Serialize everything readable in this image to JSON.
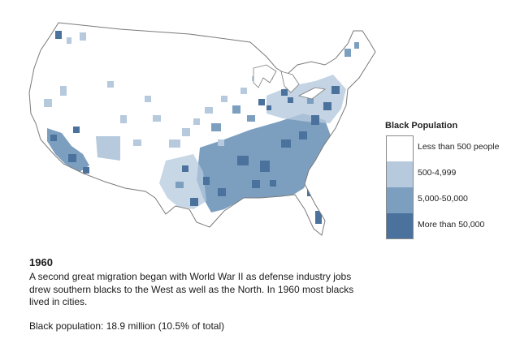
{
  "legend": {
    "title": "Black Population",
    "items": [
      {
        "label": "Less than 500 people",
        "color": "#ffffff"
      },
      {
        "label": "500-4,999",
        "color": "#b6c9dd"
      },
      {
        "label": "5,000-50,000",
        "color": "#7d9fbf"
      },
      {
        "label": "More than 50,000",
        "color": "#4a729c"
      }
    ]
  },
  "caption": {
    "year": "1960",
    "description": "A second great migration began with World War II as defense industry jobs drew southern blacks to the West as well as the North. In 1960 most blacks lived in cities.",
    "statistic": "Black population: 18.9 million (10.5% of total)"
  },
  "map": {
    "outline_color": "#7a7a7a",
    "region_fill": "#ffffff"
  }
}
